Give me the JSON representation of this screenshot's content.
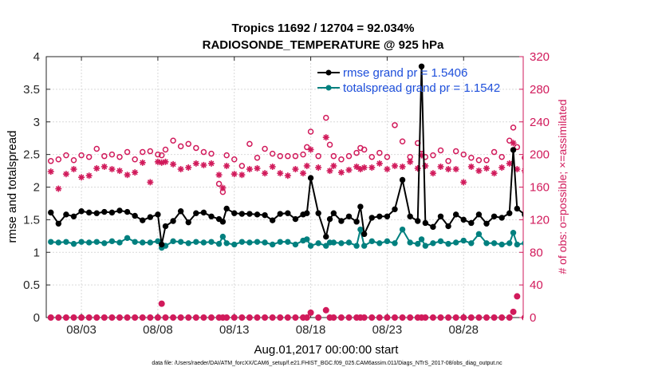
{
  "chart_data": {
    "type": "line",
    "title_line1": "Tropics 11692 / 12704 = 92.034%",
    "title_line2": "RADIOSONDE_TEMPERATURE @ 925 hPa",
    "xlabel": "Aug.01,2017 00:00:00 start",
    "ylabel_left": "rmse and totalspread",
    "ylabel_right": "# of obs: o=possible; ×=assimilated",
    "footnote": "data file: /Users/raeder/DAI/ATM_forcXX/CAM6_setup/f.e21.FHIST_BGC.f09_025.CAM6assim.011/Diags_NTrS_2017-08/obs_diag_output.nc",
    "xlim": [
      0.7,
      31.9
    ],
    "ylim_left": [
      0,
      4
    ],
    "ylim_right": [
      0,
      320
    ],
    "x_ticks": [
      3,
      8,
      13,
      18,
      23,
      28
    ],
    "x_tick_labels": [
      "08/03",
      "08/08",
      "08/13",
      "08/18",
      "08/23",
      "08/28"
    ],
    "y_ticks_left": [
      0,
      0.5,
      1,
      1.5,
      2,
      2.5,
      3,
      3.5,
      4
    ],
    "y_tick_labels_left": [
      "0",
      "0.5",
      "1",
      "1.5",
      "2",
      "2.5",
      "3",
      "3.5",
      "4"
    ],
    "y_ticks_right": [
      0,
      40,
      80,
      120,
      160,
      200,
      240,
      280,
      320
    ],
    "y_tick_labels_right": [
      "0",
      "40",
      "80",
      "120",
      "160",
      "200",
      "240",
      "280",
      "320"
    ],
    "colors": {
      "rmse": "#000000",
      "spread": "#00807f",
      "obs": "#d11a5b",
      "legend_text": "#1e4fdb",
      "axis": "#262626"
    },
    "series": [
      {
        "name": "rmse grand pr = 1.5406",
        "key": "rmse",
        "x": [
          1.0,
          1.5,
          2.0,
          2.5,
          3.0,
          3.5,
          4.0,
          4.5,
          5.0,
          5.5,
          6.0,
          6.5,
          7.0,
          7.5,
          8.0,
          8.25,
          8.5,
          9.0,
          9.5,
          10.0,
          10.5,
          11.0,
          11.5,
          12.0,
          12.25,
          12.5,
          13.0,
          13.5,
          14.0,
          14.5,
          15.0,
          15.5,
          16.0,
          16.5,
          17.0,
          17.5,
          17.75,
          18.0,
          18.5,
          19.0,
          19.25,
          19.5,
          20.0,
          20.5,
          21.0,
          21.25,
          21.5,
          22.0,
          22.5,
          23.0,
          23.5,
          24.0,
          24.5,
          25.0,
          25.25,
          25.5,
          26.0,
          26.5,
          27.0,
          27.5,
          28.0,
          28.5,
          29.0,
          29.5,
          30.0,
          30.5,
          31.0,
          31.25,
          31.5,
          32.0
        ],
        "values": [
          1.61,
          1.44,
          1.58,
          1.55,
          1.63,
          1.61,
          1.6,
          1.62,
          1.61,
          1.64,
          1.62,
          1.56,
          1.49,
          1.54,
          1.58,
          1.12,
          1.4,
          1.48,
          1.63,
          1.46,
          1.6,
          1.61,
          1.55,
          1.51,
          1.47,
          1.67,
          1.6,
          1.59,
          1.59,
          1.58,
          1.57,
          1.49,
          1.59,
          1.6,
          1.51,
          1.58,
          1.6,
          2.14,
          1.6,
          1.24,
          1.51,
          1.6,
          1.48,
          1.55,
          1.47,
          1.7,
          1.28,
          1.53,
          1.55,
          1.55,
          1.66,
          2.11,
          1.55,
          1.48,
          3.85,
          1.45,
          1.39,
          1.55,
          1.4,
          1.58,
          1.5,
          1.45,
          1.58,
          1.44,
          1.55,
          1.53,
          1.6,
          2.57,
          1.67,
          1.58
        ],
        "values_clipped_note": "last point shown at 32.0 is off-axis (hidden)"
      },
      {
        "name": "totalspread grand pr = 1.1542",
        "key": "spread",
        "x": [
          1.0,
          1.5,
          2.0,
          2.5,
          3.0,
          3.5,
          4.0,
          4.5,
          5.0,
          5.5,
          6.0,
          6.5,
          7.0,
          7.5,
          8.0,
          8.25,
          8.5,
          9.0,
          9.5,
          10.0,
          10.5,
          11.0,
          11.5,
          12.0,
          12.25,
          12.5,
          13.0,
          13.5,
          14.0,
          14.5,
          15.0,
          15.5,
          16.0,
          16.5,
          17.0,
          17.5,
          17.75,
          18.0,
          18.5,
          19.0,
          19.25,
          19.5,
          20.0,
          20.5,
          21.0,
          21.25,
          21.5,
          22.0,
          22.5,
          23.0,
          23.5,
          24.0,
          24.5,
          25.0,
          25.25,
          25.5,
          26.0,
          26.5,
          27.0,
          27.5,
          28.0,
          28.5,
          29.0,
          29.5,
          30.0,
          30.5,
          31.0,
          31.25,
          31.5,
          32.0
        ],
        "values": [
          1.16,
          1.15,
          1.16,
          1.13,
          1.16,
          1.15,
          1.16,
          1.14,
          1.17,
          1.15,
          1.22,
          1.16,
          1.15,
          1.15,
          1.17,
          1.07,
          1.1,
          1.17,
          1.16,
          1.14,
          1.16,
          1.15,
          1.16,
          1.13,
          1.24,
          1.14,
          1.12,
          1.16,
          1.15,
          1.16,
          1.15,
          1.12,
          1.16,
          1.16,
          1.12,
          1.18,
          1.2,
          1.1,
          1.14,
          1.1,
          1.15,
          1.15,
          1.14,
          1.15,
          1.1,
          1.35,
          1.1,
          1.17,
          1.14,
          1.17,
          1.14,
          1.35,
          1.15,
          1.13,
          1.2,
          1.1,
          1.14,
          1.17,
          1.13,
          1.15,
          1.18,
          1.14,
          1.28,
          1.14,
          1.14,
          1.12,
          1.14,
          1.3,
          1.12,
          1.14
        ]
      },
      {
        "name": "possible",
        "key": "obs_possible",
        "x": [
          1.0,
          1.5,
          2.0,
          2.5,
          3.0,
          3.5,
          4.0,
          4.5,
          5.0,
          5.5,
          6.0,
          6.5,
          7.0,
          7.5,
          8.0,
          8.25,
          8.5,
          9.0,
          9.5,
          10.0,
          10.5,
          11.0,
          11.5,
          12.0,
          12.25,
          12.5,
          13.0,
          13.5,
          14.0,
          14.5,
          15.0,
          15.5,
          16.0,
          16.5,
          17.0,
          17.5,
          17.75,
          18.0,
          18.5,
          19.0,
          19.25,
          19.5,
          20.0,
          20.5,
          21.0,
          21.25,
          21.5,
          22.0,
          22.5,
          23.0,
          23.5,
          24.0,
          24.5,
          25.0,
          25.25,
          25.5,
          26.0,
          26.5,
          27.0,
          27.5,
          28.0,
          28.5,
          29.0,
          29.5,
          30.0,
          30.5,
          31.0,
          31.25,
          31.5,
          32.0
        ],
        "values": [
          192,
          194,
          199,
          193,
          199,
          197,
          207,
          198,
          200,
          197,
          203,
          194,
          203,
          204,
          200,
          199,
          206,
          217,
          210,
          213,
          208,
          203,
          201,
          164,
          154,
          199,
          194,
          186,
          213,
          196,
          207,
          201,
          198,
          198,
          198,
          200,
          209,
          228,
          198,
          245,
          212,
          198,
          194,
          198,
          202,
          208,
          206,
          197,
          202,
          197,
          236,
          216,
          197,
          214,
          201,
          197,
          199,
          205,
          192,
          204,
          200,
          196,
          193,
          193,
          203,
          197,
          217,
          233,
          209,
          196
        ]
      },
      {
        "name": "assimilated",
        "key": "obs_assimilated",
        "x": [
          1.0,
          1.5,
          2.0,
          2.5,
          3.0,
          3.5,
          4.0,
          4.5,
          5.0,
          5.5,
          6.0,
          6.5,
          7.0,
          7.5,
          8.0,
          8.25,
          8.5,
          9.0,
          9.5,
          10.0,
          10.5,
          11.0,
          11.5,
          12.0,
          12.25,
          12.5,
          13.0,
          13.5,
          14.0,
          14.5,
          15.0,
          15.5,
          16.0,
          16.5,
          17.0,
          17.5,
          17.75,
          18.0,
          18.5,
          19.0,
          19.25,
          19.5,
          20.0,
          20.5,
          21.0,
          21.25,
          21.5,
          22.0,
          22.5,
          23.0,
          23.5,
          24.0,
          24.5,
          25.0,
          25.25,
          25.5,
          26.0,
          26.5,
          27.0,
          27.5,
          28.0,
          28.5,
          29.0,
          29.5,
          30.0,
          30.5,
          31.0,
          31.25,
          31.5,
          32.0
        ],
        "values": [
          179,
          158,
          176,
          182,
          172,
          174,
          183,
          185,
          182,
          180,
          175,
          178,
          190,
          166,
          191,
          190,
          191,
          188,
          182,
          184,
          189,
          187,
          189,
          175,
          159,
          186,
          176,
          175,
          182,
          183,
          177,
          185,
          177,
          174,
          182,
          177,
          186,
          206,
          184,
          221,
          180,
          186,
          178,
          181,
          185,
          182,
          184,
          184,
          189,
          182,
          186,
          185,
          191,
          183,
          199,
          186,
          177,
          185,
          182,
          182,
          166,
          185,
          180,
          183,
          177,
          184,
          189,
          214,
          182,
          180
        ]
      },
      {
        "name": "possible_low",
        "key": "obs_low",
        "x": [
          1.0,
          1.5,
          2.0,
          2.5,
          3.0,
          3.5,
          4.0,
          4.5,
          5.0,
          5.5,
          6.0,
          6.5,
          7.0,
          7.5,
          8.0,
          8.25,
          8.5,
          9.0,
          9.5,
          10.0,
          10.5,
          11.0,
          11.5,
          12.0,
          12.25,
          12.5,
          13.0,
          13.5,
          14.0,
          14.5,
          15.0,
          15.5,
          16.0,
          16.5,
          17.0,
          17.5,
          17.75,
          18.0,
          18.5,
          19.0,
          19.25,
          19.5,
          20.0,
          20.5,
          21.0,
          21.25,
          21.5,
          22.0,
          22.5,
          23.0,
          23.5,
          24.0,
          24.5,
          25.0,
          25.25,
          25.5,
          26.0,
          26.5,
          27.0,
          27.5,
          28.0,
          28.5,
          29.0,
          29.5,
          30.0,
          30.5,
          31.0,
          31.25,
          31.5,
          32.0
        ],
        "values": [
          0,
          0,
          0,
          0,
          0,
          0,
          0,
          0,
          0,
          0,
          0,
          0,
          0,
          0,
          0,
          17,
          0,
          0,
          0,
          0,
          0,
          0,
          0,
          0,
          0,
          0,
          0,
          0,
          0,
          0,
          0,
          0,
          0,
          0,
          0,
          0,
          0,
          6,
          0,
          9,
          0,
          0,
          0,
          0,
          0,
          0,
          0,
          0,
          0,
          0,
          0,
          0,
          0,
          0,
          0,
          0,
          0,
          0,
          0,
          0,
          0,
          0,
          0,
          0,
          0,
          0,
          0,
          7,
          26,
          0
        ]
      }
    ],
    "legend": [
      "rmse grand pr = 1.5406",
      "totalspread grand pr = 1.1542"
    ],
    "legend_position": "top-right",
    "grid": true
  }
}
